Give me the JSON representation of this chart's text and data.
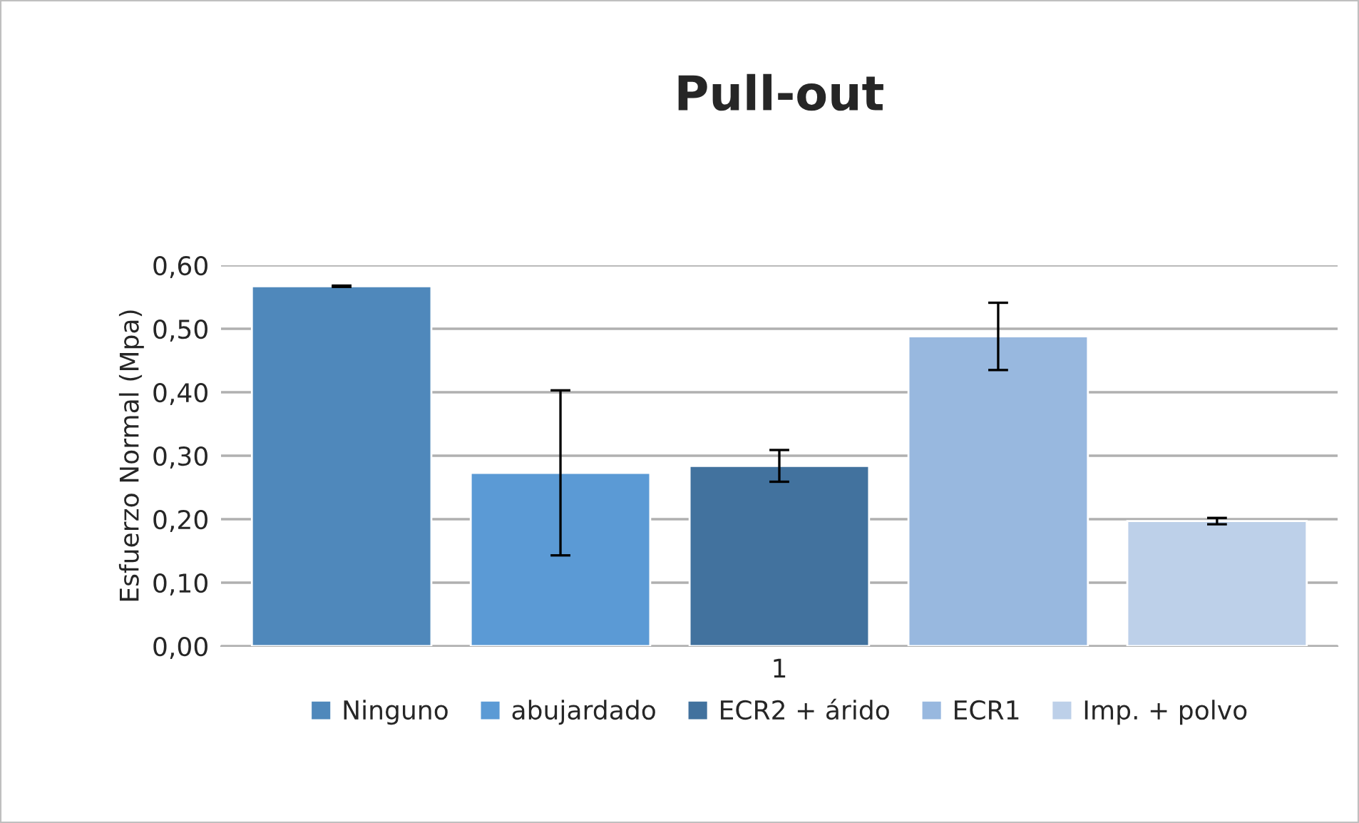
{
  "chart_data": {
    "type": "bar",
    "title": "Pull-out",
    "ylabel": "Esfuerzo Normal (Mpa)",
    "categories": [
      "1"
    ],
    "series": [
      {
        "name": "Ninguno",
        "color": "#4f88bb",
        "values": [
          0.567
        ],
        "errors": [
          0.001
        ]
      },
      {
        "name": "abujardado",
        "color": "#5b9ad5",
        "values": [
          0.273
        ],
        "errors": [
          0.13
        ]
      },
      {
        "name": "ECR2 + árido",
        "color": "#42729e",
        "values": [
          0.284
        ],
        "errors": [
          0.025
        ]
      },
      {
        "name": "ECR1",
        "color": "#98b8df",
        "values": [
          0.488
        ],
        "errors": [
          0.053
        ]
      },
      {
        "name": "Imp. + polvo",
        "color": "#bdd0e9",
        "values": [
          0.197
        ],
        "errors": [
          0.005
        ]
      }
    ],
    "ylim": [
      0,
      0.6
    ],
    "yticks": [
      {
        "value": 0,
        "label": "0,00"
      },
      {
        "value": 0.1,
        "label": "0,10"
      },
      {
        "value": 0.2,
        "label": "0,20"
      },
      {
        "value": 0.3,
        "label": "0,30"
      },
      {
        "value": 0.4,
        "label": "0,40"
      },
      {
        "value": 0.5,
        "label": "0,50"
      },
      {
        "value": 0.6,
        "label": "0,60"
      }
    ],
    "grid": "y",
    "legend": "bottom"
  }
}
